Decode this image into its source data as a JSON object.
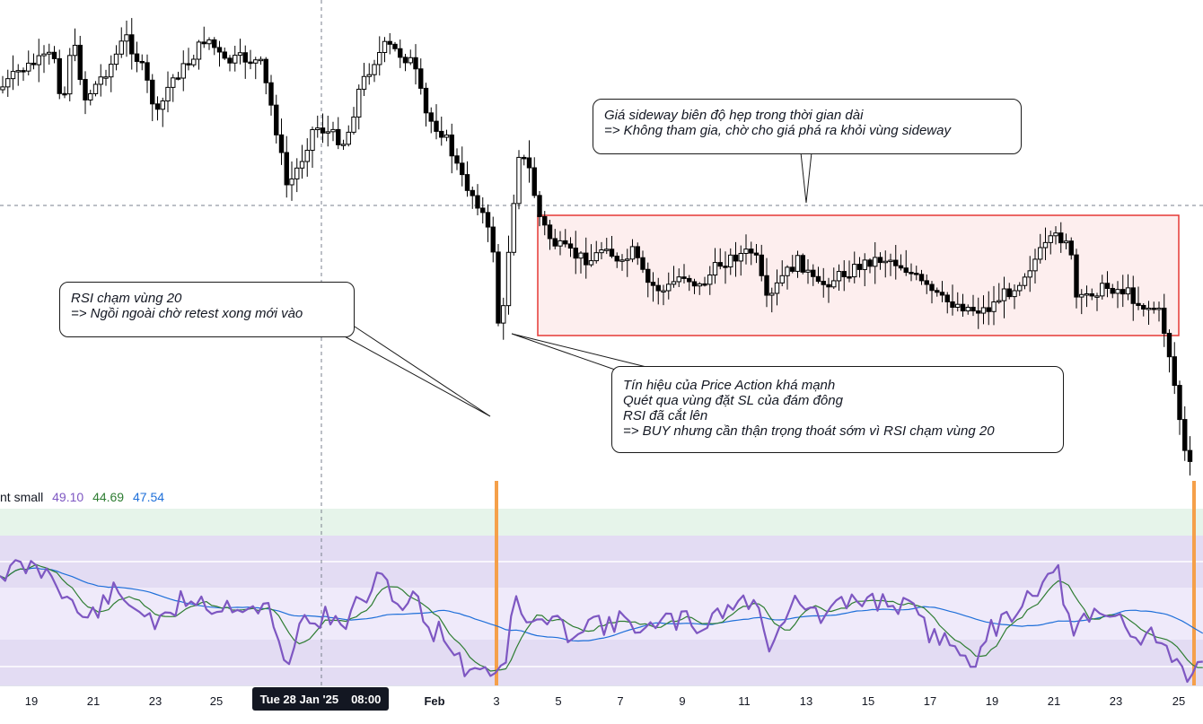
{
  "chart_data": {
    "type": "candlestick",
    "panes": [
      {
        "name": "price",
        "type": "candlestick",
        "box": "sideway range"
      },
      {
        "name": "rsi",
        "type": "line",
        "levels": [
          80,
          70,
          60,
          50,
          40,
          30,
          20
        ]
      }
    ],
    "x_ticks": [
      "19",
      "21",
      "23",
      "25",
      "Feb",
      "3",
      "5",
      "7",
      "9",
      "11",
      "13",
      "15",
      "17",
      "19",
      "21",
      "23",
      "25"
    ],
    "crosshair_label": {
      "date": "Tue 28 Jan '25",
      "time": "08:00"
    },
    "indicator": {
      "name": "nt small",
      "values": [
        "49.10",
        "44.69",
        "47.54"
      ],
      "colors": [
        "#7e57c2",
        "#2e7d32",
        "#1e6fd9"
      ]
    },
    "annotations": [
      {
        "id": "sideway",
        "lines": [
          "Giá sideway biên độ hẹp trong thời gian dài",
          "=> Không tham gia, chờ cho giá phá ra khỏi vùng sideway"
        ]
      },
      {
        "id": "rsi20",
        "lines": [
          "RSI chạm vùng 20",
          "=> Ngồi ngoài chờ retest xong mới vào"
        ]
      },
      {
        "id": "pa",
        "lines": [
          "Tín hiệu của Price Action khá mạnh",
          "Quét qua vùng đặt SL của đám đông",
          "RSI đã cắt lên",
          "=> BUY nhưng cần thận trọng thoát sớm vì RSI chạm vùng 20"
        ]
      }
    ],
    "colors": {
      "bull": "#ffffff",
      "bear": "#000000",
      "wick": "#000000",
      "box_fill": "#fdeeee",
      "box_border": "#e53935",
      "rsi": "#7e57c2",
      "ma_fast": "#2e7d32",
      "ma_slow": "#1e6fd9",
      "highlight": "#f5a04a",
      "band_green": "#e6f4ea",
      "band_purple": "#e3dcf3",
      "band_light": "#efeafa"
    }
  }
}
